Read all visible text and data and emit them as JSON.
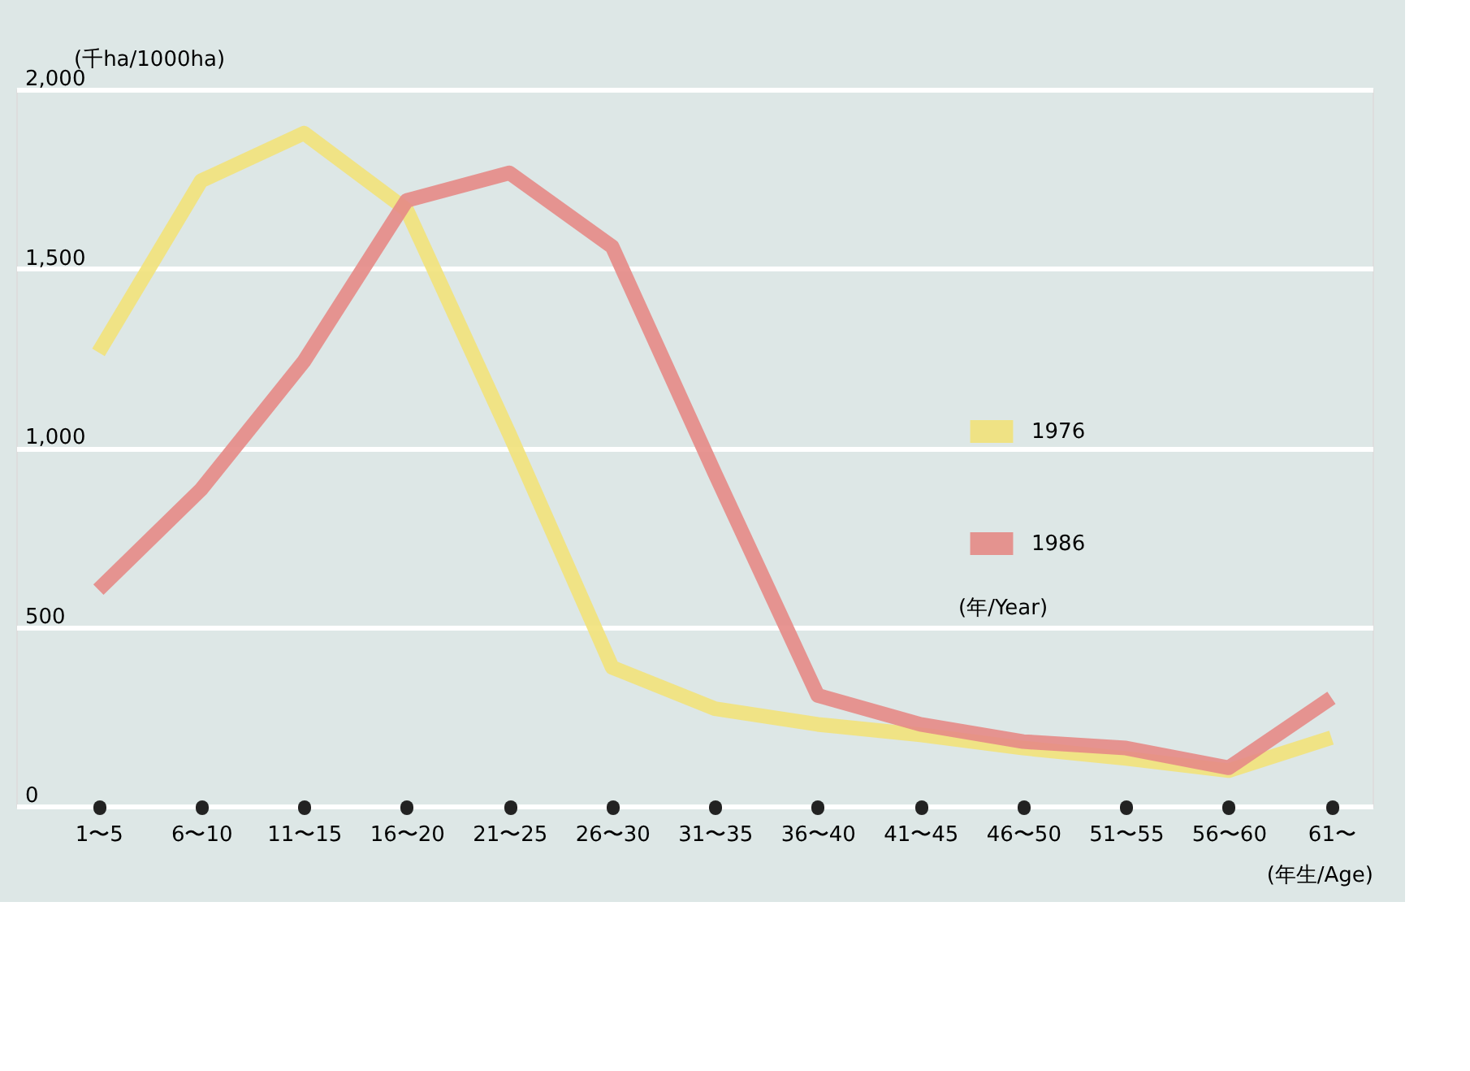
{
  "chart_data": {
    "type": "line",
    "ylabel": "(千ha/1000ha)",
    "xlabel": "(年生/Age)",
    "legend_title": "(年/Year)",
    "categories": [
      "1〜5",
      "6〜10",
      "11〜15",
      "16〜20",
      "21〜25",
      "26〜30",
      "31〜35",
      "36〜40",
      "41〜45",
      "46〜50",
      "51〜55",
      "56〜60",
      "61〜"
    ],
    "series": [
      {
        "name": "1976",
        "color": "#f2e27a",
        "values": [
          1266,
          1745,
          1878,
          1664,
          1038,
          387,
          272,
          228,
          199,
          162,
          133,
          99,
          191
        ]
      },
      {
        "name": "1986",
        "color": "#e58a86",
        "values": [
          604,
          884,
          1241,
          1690,
          1767,
          1561,
          928,
          309,
          228,
          180,
          162,
          107,
          302
        ]
      }
    ],
    "ylim": [
      0,
      2000
    ],
    "yticks": [
      0,
      500,
      {
        "value": 1000,
        "label": "1,000"
      },
      {
        "value": 1500,
        "label": "1,500"
      },
      {
        "value": 2000,
        "label": "2,000"
      }
    ],
    "grid": "y",
    "legend": "right",
    "marker": "none",
    "line_style": "solid"
  }
}
